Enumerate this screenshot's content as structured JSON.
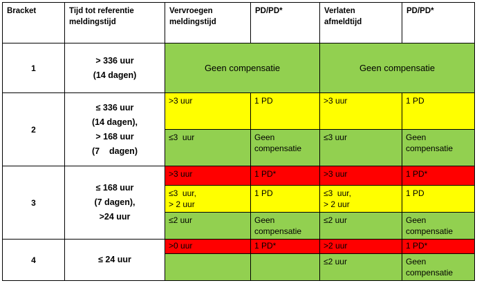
{
  "header": {
    "bracket": "Bracket",
    "tijd": [
      "Tijd tot referentie",
      "meldingstijd"
    ],
    "vervroegen": [
      "Vervroegen",
      "meldingstijd"
    ],
    "pd1": "PD/PD*",
    "verlaten": [
      "Verlaten",
      "afmeldtijd"
    ],
    "pd2": "PD/PD*"
  },
  "brackets": [
    {
      "label": "1",
      "tijd": [
        "> 336 uur",
        "(14 dagen)"
      ],
      "vervroegen_merged": "Geen compensatie",
      "verlaten_merged": "Geen compensatie"
    },
    {
      "label": "2",
      "tijd": [
        "≤ 336 uur",
        "(14 dagen),",
        "> 168 uur",
        "(7    dagen)"
      ],
      "rows": [
        {
          "color": "yellow",
          "vervroegen": [
            ">3 uur"
          ],
          "pd1": [
            "1 PD"
          ],
          "verlaten": [
            ">3 uur"
          ],
          "pd2": [
            "1 PD"
          ]
        },
        {
          "color": "green",
          "vervroegen": [
            "≤3  uur"
          ],
          "pd1": [
            "Geen",
            "compensatie"
          ],
          "verlaten": [
            "≤3 uur"
          ],
          "pd2": [
            "Geen",
            "compensatie"
          ]
        }
      ]
    },
    {
      "label": "3",
      "tijd": [
        "≤ 168 uur",
        "(7 dagen),",
        ">24 uur"
      ],
      "rows": [
        {
          "color": "red",
          "vervroegen": [
            ">3 uur"
          ],
          "pd1": [
            "1 PD*"
          ],
          "verlaten": [
            ">3 uur"
          ],
          "pd2": [
            "1 PD*"
          ]
        },
        {
          "color": "yellow",
          "vervroegen": [
            "≤3  uur,",
            "> 2 uur"
          ],
          "pd1": [
            "1 PD"
          ],
          "verlaten": [
            "≤3  uur,",
            "> 2 uur"
          ],
          "pd2": [
            "1 PD"
          ]
        },
        {
          "color": "green",
          "vervroegen": [
            "≤2 uur"
          ],
          "pd1": [
            "Geen",
            "compensatie"
          ],
          "verlaten": [
            "≤2 uur"
          ],
          "pd2": [
            "Geen",
            "compensatie"
          ]
        }
      ]
    },
    {
      "label": "4",
      "tijd": [
        "≤ 24 uur"
      ],
      "rows": [
        {
          "color": "red",
          "vervroegen": [
            ">0 uur"
          ],
          "pd1": [
            "1 PD*"
          ],
          "verlaten": [
            ">2 uur"
          ],
          "pd2": [
            "1 PD*"
          ]
        },
        {
          "color": "green",
          "vervroegen": [],
          "pd1": [],
          "verlaten": [
            "≤2 uur"
          ],
          "pd2": [
            "Geen",
            "compensatie"
          ]
        }
      ]
    }
  ],
  "colors": {
    "green": "#92d050",
    "yellow": "#ffff00",
    "red": "#ff0000"
  }
}
